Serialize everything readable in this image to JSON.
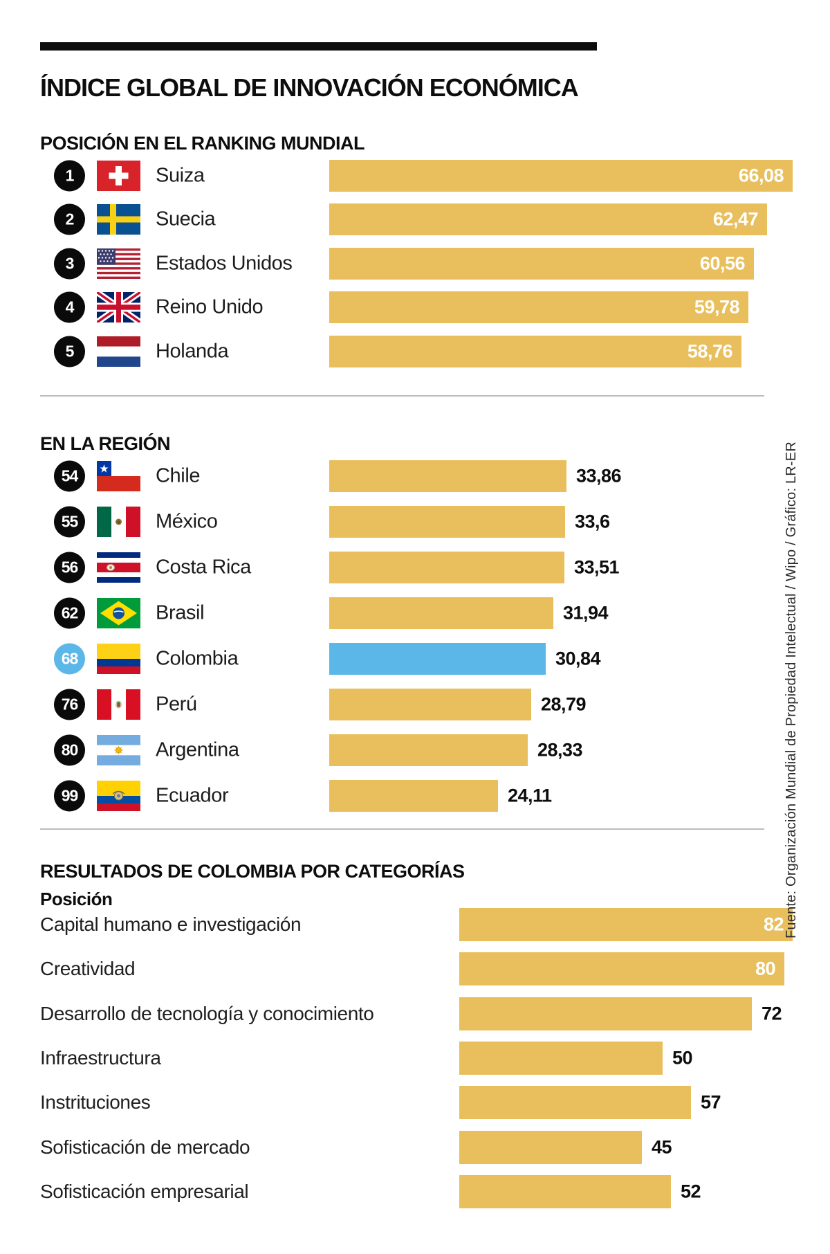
{
  "title": "ÍNDICE GLOBAL DE INNOVACIÓN ECONÓMICA",
  "source_note": "Fuente: Organización Mundial de Propiedad Intelectual / Wipo / Gráfico: LR-ER",
  "colors": {
    "bar_gold": "#e8bf5c",
    "highlight_blue": "#5bb7e8",
    "badge_black": "#0a0a0a"
  },
  "world_ranking": {
    "heading": "POSICIÓN EN EL RANKING MUNDIAL",
    "rows": [
      {
        "rank": "1",
        "country": "Suiza",
        "flag": "suiza",
        "value": 66.08,
        "value_label": "66,08",
        "value_inside": true,
        "highlight": false
      },
      {
        "rank": "2",
        "country": "Suecia",
        "flag": "suecia",
        "value": 62.47,
        "value_label": "62,47",
        "value_inside": true,
        "highlight": false
      },
      {
        "rank": "3",
        "country": "Estados Unidos",
        "flag": "eeuu",
        "value": 60.56,
        "value_label": "60,56",
        "value_inside": true,
        "highlight": false
      },
      {
        "rank": "4",
        "country": "Reino Unido",
        "flag": "reino_unido",
        "value": 59.78,
        "value_label": "59,78",
        "value_inside": true,
        "highlight": false
      },
      {
        "rank": "5",
        "country": "Holanda",
        "flag": "holanda",
        "value": 58.76,
        "value_label": "58,76",
        "value_inside": true,
        "highlight": false
      }
    ]
  },
  "region": {
    "heading": "EN LA REGIÓN",
    "rows": [
      {
        "rank": "54",
        "country": "Chile",
        "flag": "chile",
        "value": 33.86,
        "value_label": "33,86",
        "value_inside": false,
        "highlight": false
      },
      {
        "rank": "55",
        "country": "México",
        "flag": "mexico",
        "value": 33.6,
        "value_label": "33,6",
        "value_inside": false,
        "highlight": false
      },
      {
        "rank": "56",
        "country": "Costa Rica",
        "flag": "costa_rica",
        "value": 33.51,
        "value_label": "33,51",
        "value_inside": false,
        "highlight": false
      },
      {
        "rank": "62",
        "country": "Brasil",
        "flag": "brasil",
        "value": 31.94,
        "value_label": "31,94",
        "value_inside": false,
        "highlight": false
      },
      {
        "rank": "68",
        "country": "Colombia",
        "flag": "colombia",
        "value": 30.84,
        "value_label": "30,84",
        "value_inside": false,
        "highlight": true
      },
      {
        "rank": "76",
        "country": "Perú",
        "flag": "peru",
        "value": 28.79,
        "value_label": "28,79",
        "value_inside": false,
        "highlight": false
      },
      {
        "rank": "80",
        "country": "Argentina",
        "flag": "argentina",
        "value": 28.33,
        "value_label": "28,33",
        "value_inside": false,
        "highlight": false
      },
      {
        "rank": "99",
        "country": "Ecuador",
        "flag": "ecuador",
        "value": 24.11,
        "value_label": "24,11",
        "value_inside": false,
        "highlight": false
      }
    ]
  },
  "colombia_categories": {
    "heading": "RESULTADOS DE COLOMBIA POR CATEGORÍAS",
    "subheading": "Posición",
    "rows": [
      {
        "label": "Capital humano e investigación",
        "value": 82,
        "value_label": "82",
        "value_inside": true
      },
      {
        "label": "Creatividad",
        "value": 80,
        "value_label": "80",
        "value_inside": true
      },
      {
        "label": "Desarrollo de tecnología y conocimiento",
        "value": 72,
        "value_label": "72",
        "value_inside": false
      },
      {
        "label": "Infraestructura",
        "value": 50,
        "value_label": "50",
        "value_inside": false
      },
      {
        "label": "Instrituciones",
        "value": 57,
        "value_label": "57",
        "value_inside": false
      },
      {
        "label": "Sofisticación de mercado",
        "value": 45,
        "value_label": "45",
        "value_inside": false
      },
      {
        "label": "Sofisticación empresarial",
        "value": 52,
        "value_label": "52",
        "value_inside": false
      }
    ]
  },
  "chart_data": [
    {
      "type": "bar",
      "orientation": "horizontal",
      "title": "POSICIÓN EN EL RANKING MUNDIAL",
      "categories": [
        "Suiza",
        "Suecia",
        "Estados Unidos",
        "Reino Unido",
        "Holanda"
      ],
      "ranks": [
        1,
        2,
        3,
        4,
        5
      ],
      "values": [
        66.08,
        62.47,
        60.56,
        59.78,
        58.76
      ],
      "xlim": [
        0,
        70
      ],
      "bar_color": "#e8bf5c",
      "value_labels": [
        "66,08",
        "62,47",
        "60,56",
        "59,78",
        "58,76"
      ]
    },
    {
      "type": "bar",
      "orientation": "horizontal",
      "title": "EN LA REGIÓN",
      "categories": [
        "Chile",
        "México",
        "Costa Rica",
        "Brasil",
        "Colombia",
        "Perú",
        "Argentina",
        "Ecuador"
      ],
      "ranks": [
        54,
        55,
        56,
        62,
        68,
        76,
        80,
        99
      ],
      "values": [
        33.86,
        33.6,
        33.51,
        31.94,
        30.84,
        28.79,
        28.33,
        24.11
      ],
      "xlim": [
        0,
        70
      ],
      "bar_color": "#e8bf5c",
      "highlighted_category": "Colombia",
      "highlight_color": "#5bb7e8",
      "value_labels": [
        "33,86",
        "33,6",
        "33,51",
        "31,94",
        "30,84",
        "28,79",
        "28,33",
        "24,11"
      ]
    },
    {
      "type": "bar",
      "orientation": "horizontal",
      "title": "RESULTADOS DE COLOMBIA POR CATEGORÍAS",
      "ylabel": "Posición",
      "categories": [
        "Capital humano e investigación",
        "Creatividad",
        "Desarrollo de tecnología y conocimiento",
        "Infraestructura",
        "Instrituciones",
        "Sofisticación de mercado",
        "Sofisticación empresarial"
      ],
      "values": [
        82,
        80,
        72,
        50,
        57,
        45,
        52
      ],
      "xlim": [
        0,
        85
      ],
      "bar_color": "#e8bf5c"
    }
  ]
}
